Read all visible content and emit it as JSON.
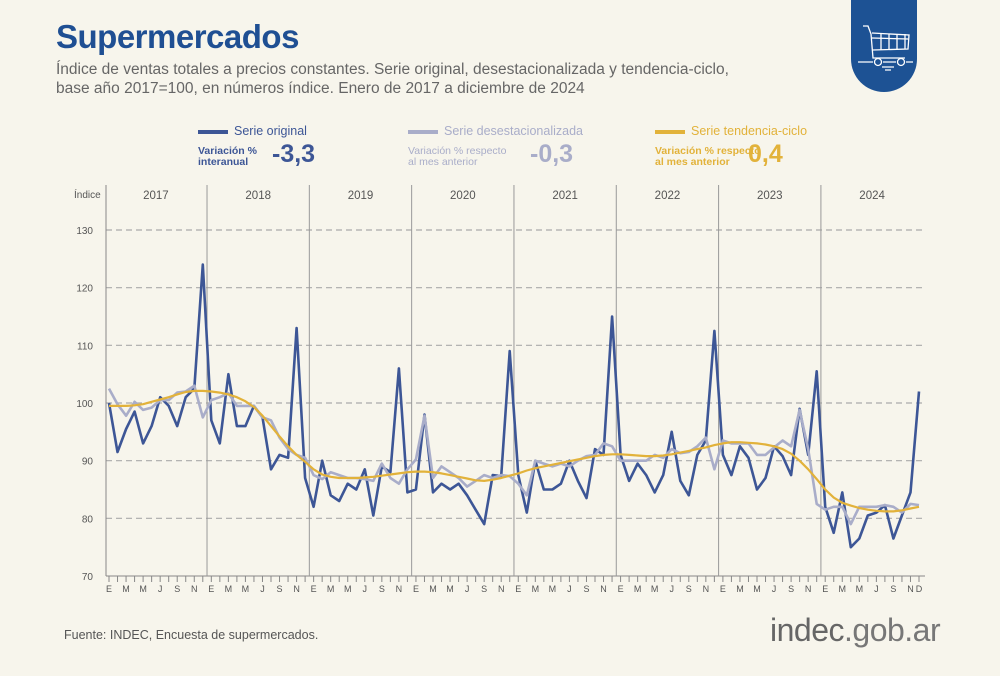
{
  "header": {
    "title": "Supermercados",
    "subtitle_line1": "Índice de ventas totales a precios constantes. Serie original, desestacionalizada y tendencia-ciclo,",
    "subtitle_line2": "base año 2017=100, en números índice. Enero de 2017 a diciembre de 2024",
    "icon": "shopping-cart-icon"
  },
  "legend": [
    {
      "name": "Serie original",
      "color": "#3d5696",
      "var_label1": "Variación %",
      "var_label2": "interanual",
      "var_value": "-3,3"
    },
    {
      "name": "Serie desestacionalizada",
      "color": "#a9adc9",
      "var_label1": "Variación % respecto",
      "var_label2": "al mes anterior",
      "var_value": "-0,3"
    },
    {
      "name": "Serie tendencia-ciclo",
      "color": "#e2b23a",
      "var_label1": "Variación % respecto",
      "var_label2": "al mes anterior",
      "var_value": "0,4"
    }
  ],
  "footer": {
    "source": "Fuente: INDEC, Encuesta de supermercados.",
    "logo": "indec.gob.ar"
  },
  "chart_data": {
    "type": "line",
    "ylabel": "Índice",
    "ylim": [
      70,
      130
    ],
    "yticks": [
      70,
      80,
      90,
      100,
      110,
      120,
      130
    ],
    "grid": "horizontal dashed",
    "years": [
      "2017",
      "2018",
      "2019",
      "2020",
      "2021",
      "2022",
      "2023",
      "2024"
    ],
    "x_tick_labels": [
      "E",
      "",
      "M",
      "",
      "M",
      "",
      "J",
      "",
      "S",
      "",
      "N",
      "",
      "E",
      "",
      "M",
      "",
      "M",
      "",
      "J",
      "",
      "S",
      "",
      "N",
      "",
      "E",
      "",
      "M",
      "",
      "M",
      "",
      "J",
      "",
      "S",
      "",
      "N",
      "",
      "E",
      "",
      "M",
      "",
      "M",
      "",
      "J",
      "",
      "S",
      "",
      "N",
      "",
      "E",
      "",
      "M",
      "",
      "M",
      "",
      "J",
      "",
      "S",
      "",
      "N",
      "",
      "E",
      "",
      "M",
      "",
      "M",
      "",
      "J",
      "",
      "S",
      "",
      "N",
      "",
      "E",
      "",
      "M",
      "",
      "M",
      "",
      "J",
      "",
      "S",
      "",
      "N",
      "",
      "E",
      "",
      "M",
      "",
      "M",
      "",
      "J",
      "",
      "S",
      "",
      "N",
      "D"
    ],
    "series": [
      {
        "name": "Serie original",
        "color": "#3d5696",
        "values": [
          100,
          91.5,
          95.5,
          98.5,
          93,
          96,
          101,
          99.5,
          96,
          101,
          102.5,
          124,
          97,
          93,
          105,
          96,
          96,
          99.5,
          97.5,
          88.5,
          91,
          90.5,
          113,
          87,
          82,
          90,
          84,
          83,
          86,
          85,
          88.5,
          80.5,
          89,
          88,
          106,
          84.5,
          85,
          98,
          84.5,
          86,
          85,
          86,
          84,
          81.5,
          79,
          87.5,
          87.3,
          109,
          87.5,
          81,
          90,
          85,
          85,
          86,
          90,
          86.5,
          83.5,
          92,
          91,
          115,
          91,
          86.5,
          89.5,
          87.5,
          84.5,
          87.5,
          95,
          86.5,
          84,
          91,
          93.5,
          112.5,
          91,
          87.5,
          92.5,
          90.5,
          85,
          87,
          92.5,
          90.8,
          87.5,
          99,
          91,
          105.5,
          82,
          77.5,
          84.5,
          75,
          76.5,
          80.5,
          81,
          82.3,
          76.5,
          80.5,
          84.5,
          102
        ]
      },
      {
        "name": "Serie desestacionalizada",
        "color": "#a9adc9",
        "values": [
          102.5,
          99.8,
          97.8,
          100.2,
          98.8,
          99.2,
          100.5,
          100.5,
          101.8,
          102,
          103,
          97.5,
          100.5,
          101,
          101.7,
          99.5,
          99.5,
          99.5,
          97.5,
          97,
          94,
          92,
          91,
          90.5,
          87.5,
          86.8,
          88,
          87.5,
          87,
          87,
          86.8,
          86.5,
          89.5,
          87,
          86,
          88.5,
          90.2,
          97.8,
          87,
          89,
          88,
          87,
          85.5,
          86.5,
          87.5,
          87,
          87.5,
          87.3,
          86,
          84,
          90,
          89.5,
          89,
          89.5,
          89,
          90,
          90.8,
          91,
          93,
          92.5,
          90,
          90,
          90,
          90,
          91,
          90.5,
          92,
          91.3,
          91.5,
          92.5,
          94,
          88.5,
          93.5,
          93,
          93,
          93,
          91,
          91,
          92.3,
          93.5,
          92.5,
          98.8,
          92,
          82.5,
          81.5,
          82,
          82,
          79,
          82,
          82,
          82,
          82.3,
          82,
          81,
          82.5,
          82.3
        ]
      },
      {
        "name": "Serie tendencia-ciclo",
        "color": "#e2b23a",
        "values": [
          99.5,
          99.5,
          99.5,
          99.6,
          99.8,
          100.2,
          100.6,
          101,
          101.5,
          101.9,
          102.1,
          102.1,
          102,
          101.8,
          101.5,
          101,
          100.3,
          99.3,
          97.8,
          96,
          94.2,
          92.5,
          91,
          89.8,
          88.5,
          87.6,
          87.2,
          87,
          87,
          87,
          87.1,
          87.2,
          87.4,
          87.6,
          87.8,
          88,
          88.1,
          88.1,
          88,
          87.8,
          87.5,
          87.2,
          86.9,
          86.6,
          86.5,
          86.7,
          87,
          87.4,
          87.8,
          88.3,
          88.7,
          89,
          89.3,
          89.6,
          89.9,
          90.2,
          90.5,
          90.8,
          91,
          91.1,
          91.1,
          91,
          90.9,
          90.8,
          90.8,
          90.9,
          91.1,
          91.4,
          91.7,
          92,
          92.3,
          92.7,
          93,
          93.2,
          93.2,
          93.1,
          93,
          92.8,
          92.5,
          92,
          91.2,
          90,
          88.5,
          86.8,
          85,
          83.6,
          82.7,
          82.2,
          81.8,
          81.5,
          81.3,
          81.2,
          81.2,
          81.4,
          81.7,
          82
        ]
      }
    ]
  }
}
